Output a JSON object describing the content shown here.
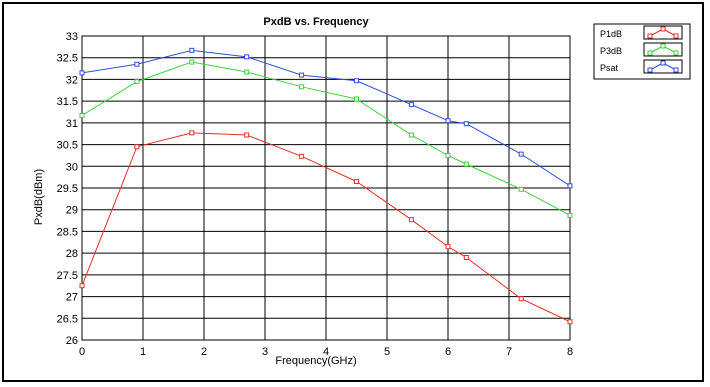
{
  "chart_data": {
    "type": "line",
    "title": "PxdB vs. Frequency",
    "xlabel": "Frequency(GHz)",
    "ylabel": "PxdB(dBm)",
    "xlim": [
      0,
      8
    ],
    "ylim": [
      26,
      33
    ],
    "x_ticks": [
      "0",
      "1",
      "2",
      "3",
      "4",
      "5",
      "6",
      "7",
      "8"
    ],
    "y_ticks": [
      "26",
      "26.5",
      "27",
      "27.5",
      "28",
      "28.5",
      "29",
      "29.5",
      "30",
      "30.5",
      "31",
      "31.5",
      "32",
      "32.5",
      "33"
    ],
    "grid": true,
    "legend_position": "top-right",
    "series": [
      {
        "name": "P1dB",
        "color": "#e8302a",
        "points": [
          [
            0,
            27.25
          ],
          [
            0.9,
            30.45
          ],
          [
            1.8,
            30.77
          ],
          [
            2.7,
            30.72
          ],
          [
            3.6,
            30.23
          ],
          [
            4.5,
            29.65
          ],
          [
            5.4,
            28.77
          ],
          [
            6.0,
            28.15
          ],
          [
            6.3,
            27.9
          ],
          [
            7.2,
            26.95
          ],
          [
            8.0,
            26.42
          ]
        ]
      },
      {
        "name": "P3dB",
        "color": "#3cd23c",
        "points": [
          [
            0,
            31.17
          ],
          [
            0.9,
            31.95
          ],
          [
            1.8,
            32.4
          ],
          [
            2.7,
            32.17
          ],
          [
            3.6,
            31.83
          ],
          [
            4.5,
            31.55
          ],
          [
            5.4,
            30.72
          ],
          [
            6.0,
            30.25
          ],
          [
            6.3,
            30.05
          ],
          [
            7.2,
            29.47
          ],
          [
            8.0,
            28.87
          ]
        ]
      },
      {
        "name": "Psat",
        "color": "#2e4fdc",
        "points": [
          [
            0,
            32.15
          ],
          [
            0.9,
            32.35
          ],
          [
            1.8,
            32.67
          ],
          [
            2.7,
            32.52
          ],
          [
            3.6,
            32.1
          ],
          [
            4.5,
            31.97
          ],
          [
            5.4,
            31.42
          ],
          [
            6.0,
            31.05
          ],
          [
            6.3,
            30.98
          ],
          [
            7.2,
            30.28
          ],
          [
            8.0,
            29.55
          ]
        ]
      }
    ]
  }
}
